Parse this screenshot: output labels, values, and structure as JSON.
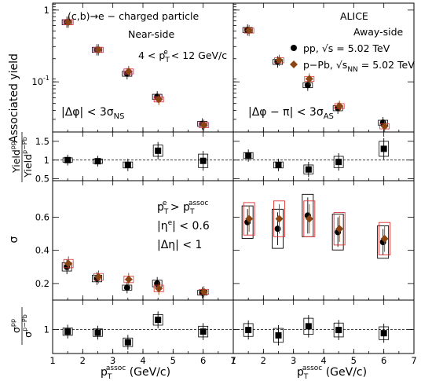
{
  "figure": {
    "experiment": "ALICE",
    "process": "(c,b)→e − charged particle",
    "near_side": "Near-side",
    "away_side": "Away-side",
    "pt_range": "4 < p",
    "pt_range_sup": "e",
    "pt_range_sub": "T",
    "pt_range_tail": " < 12 GeV/c",
    "dphi_ns": "|Δφ| < 3σ",
    "dphi_ns_sub": "NS",
    "dphi_as": "|Δφ − π| < 3σ",
    "dphi_as_sub": "AS",
    "legend_pp": "pp, √s = 5.02 TeV",
    "legend_ppb": "p−Pb, √s",
    "legend_ppb_sub": "NN",
    "legend_ppb_tail": " = 5.02 TeV",
    "cut_pt": "p",
    "cut_pt_sup_e": "e",
    "cut_pt_sub": "T",
    "cut_pt_mid": " > p",
    "cut_pt_sup_assoc": "assoc",
    "cut_eta": "|η",
    "cut_eta_sup": "e",
    "cut_eta_tail": "| < 0.6",
    "cut_deta": "|Δη| < 1",
    "ylabel_yield": "Associated yield",
    "ylabel_ratio_yield_num": "Yield",
    "ylabel_ratio_yield_num_sup": "pp",
    "ylabel_ratio_yield_den": "Yield",
    "ylabel_ratio_yield_den_sup": "p−Pb",
    "ylabel_sigma": "σ",
    "ylabel_ratio_sigma_num": "σ",
    "ylabel_ratio_sigma_num_sup": "pp",
    "ylabel_ratio_sigma_den": "σ",
    "ylabel_ratio_sigma_den_sup": "p−Pb",
    "xlabel": "p",
    "xlabel_sup": "assoc",
    "xlabel_sub": "T",
    "xlabel_tail": " (GeV/c)"
  },
  "colors": {
    "pp": "#000000",
    "ppb": "#8b4513",
    "ppb_sys": "#e03030",
    "ghost": "#ff9cf0"
  },
  "chart_data": [
    {
      "type": "scatter",
      "panel": "yield-near",
      "yscale": "log",
      "xlim": [
        1,
        7
      ],
      "ylim": [
        0.02,
        1.25
      ],
      "yticks": [
        0.1,
        1
      ],
      "yticklabels": [
        "10^-1",
        "1"
      ],
      "series": [
        {
          "name": "pp, √s = 5.02 TeV",
          "x": [
            1.5,
            2.5,
            3.5,
            4.5,
            6.0
          ],
          "y": [
            0.68,
            0.28,
            0.13,
            0.062,
            0.026
          ]
        },
        {
          "name": "p−Pb, √sNN = 5.02 TeV",
          "x": [
            1.5,
            2.5,
            3.5,
            4.5,
            6.0
          ],
          "y": [
            0.68,
            0.28,
            0.14,
            0.057,
            0.025
          ]
        }
      ]
    },
    {
      "type": "scatter",
      "panel": "yield-away",
      "yscale": "log",
      "xlim": [
        1,
        7
      ],
      "ylim": [
        0.02,
        1.25
      ],
      "series": [
        {
          "name": "pp, √s = 5.02 TeV",
          "x": [
            1.5,
            2.5,
            3.5,
            4.5,
            6.0
          ],
          "y": [
            0.53,
            0.19,
            0.09,
            0.043,
            0.027
          ]
        },
        {
          "name": "p−Pb, √sNN = 5.02 TeV",
          "x": [
            1.5,
            2.5,
            3.5,
            4.5,
            6.0
          ],
          "y": [
            0.52,
            0.2,
            0.11,
            0.046,
            0.024
          ]
        }
      ]
    },
    {
      "type": "scatter",
      "panel": "yield-ratio-near",
      "xlim": [
        1,
        7
      ],
      "ylim": [
        0.45,
        1.75
      ],
      "yticks": [
        0.5,
        1,
        1.5
      ],
      "yticklabels": [
        "0.5",
        "1",
        "1.5"
      ],
      "series": [
        {
          "name": "ratio",
          "x": [
            1.5,
            2.5,
            3.5,
            4.5,
            6.0
          ],
          "y": [
            1.0,
            0.97,
            0.87,
            1.25,
            0.98
          ],
          "err": [
            0.06,
            0.06,
            0.08,
            0.15,
            0.18
          ]
        }
      ]
    },
    {
      "type": "scatter",
      "panel": "yield-ratio-away",
      "xlim": [
        1,
        7
      ],
      "ylim": [
        0.45,
        1.75
      ],
      "series": [
        {
          "name": "ratio",
          "x": [
            1.5,
            2.5,
            3.5,
            4.5,
            6.0
          ],
          "y": [
            1.12,
            0.87,
            0.75,
            0.95,
            1.3
          ],
          "err": [
            0.08,
            0.08,
            0.12,
            0.15,
            0.2
          ]
        }
      ]
    },
    {
      "type": "scatter",
      "panel": "sigma-near",
      "xlim": [
        1,
        7
      ],
      "ylim": [
        0.1,
        0.82
      ],
      "yticks": [
        0.2,
        0.4,
        0.6
      ],
      "yticklabels": [
        "0.2",
        "0.4",
        "0.6"
      ],
      "series": [
        {
          "name": "pp",
          "x": [
            1.5,
            2.5,
            3.5,
            4.5,
            6.0
          ],
          "y": [
            0.3,
            0.23,
            0.175,
            0.2,
            0.145
          ],
          "err": [
            0.025,
            0.02,
            0.015,
            0.02,
            0.015
          ]
        },
        {
          "name": "p−Pb",
          "x": [
            1.5,
            2.5,
            3.5,
            4.5,
            6.0
          ],
          "y": [
            0.32,
            0.24,
            0.225,
            0.17,
            0.15
          ],
          "err": [
            0.025,
            0.02,
            0.02,
            0.02,
            0.015
          ]
        }
      ]
    },
    {
      "type": "scatter",
      "panel": "sigma-away",
      "xlim": [
        1,
        7
      ],
      "ylim": [
        0.1,
        0.82
      ],
      "series": [
        {
          "name": "pp",
          "x": [
            1.5,
            2.5,
            3.5,
            4.5,
            6.0
          ],
          "y": [
            0.57,
            0.53,
            0.61,
            0.51,
            0.45
          ],
          "err": [
            0.06,
            0.08,
            0.09,
            0.07,
            0.06
          ]
        },
        {
          "name": "p−Pb",
          "x": [
            1.5,
            2.5,
            3.5,
            4.5,
            6.0
          ],
          "y": [
            0.59,
            0.59,
            0.59,
            0.53,
            0.47
          ],
          "err": [
            0.06,
            0.07,
            0.07,
            0.06,
            0.06
          ]
        }
      ]
    },
    {
      "type": "scatter",
      "panel": "sigma-ratio-near",
      "xlim": [
        1,
        7
      ],
      "ylim": [
        0.55,
        1.55
      ],
      "yticks": [
        1
      ],
      "yticklabels": [
        "1"
      ],
      "series": [
        {
          "name": "ratio",
          "x": [
            1.5,
            2.5,
            3.5,
            4.5,
            6.0
          ],
          "y": [
            0.96,
            0.94,
            0.76,
            1.18,
            0.96
          ],
          "err": [
            0.07,
            0.07,
            0.08,
            0.1,
            0.1
          ]
        }
      ]
    },
    {
      "type": "scatter",
      "panel": "sigma-ratio-away",
      "xlim": [
        1,
        7
      ],
      "ylim": [
        0.55,
        1.55
      ],
      "series": [
        {
          "name": "ratio",
          "x": [
            1.5,
            2.5,
            3.5,
            4.5,
            6.0
          ],
          "y": [
            0.99,
            0.89,
            1.06,
            0.99,
            0.93
          ],
          "err": [
            0.12,
            0.13,
            0.15,
            0.13,
            0.12
          ]
        }
      ]
    }
  ],
  "xticks": [
    1,
    2,
    3,
    4,
    5,
    6,
    7
  ]
}
